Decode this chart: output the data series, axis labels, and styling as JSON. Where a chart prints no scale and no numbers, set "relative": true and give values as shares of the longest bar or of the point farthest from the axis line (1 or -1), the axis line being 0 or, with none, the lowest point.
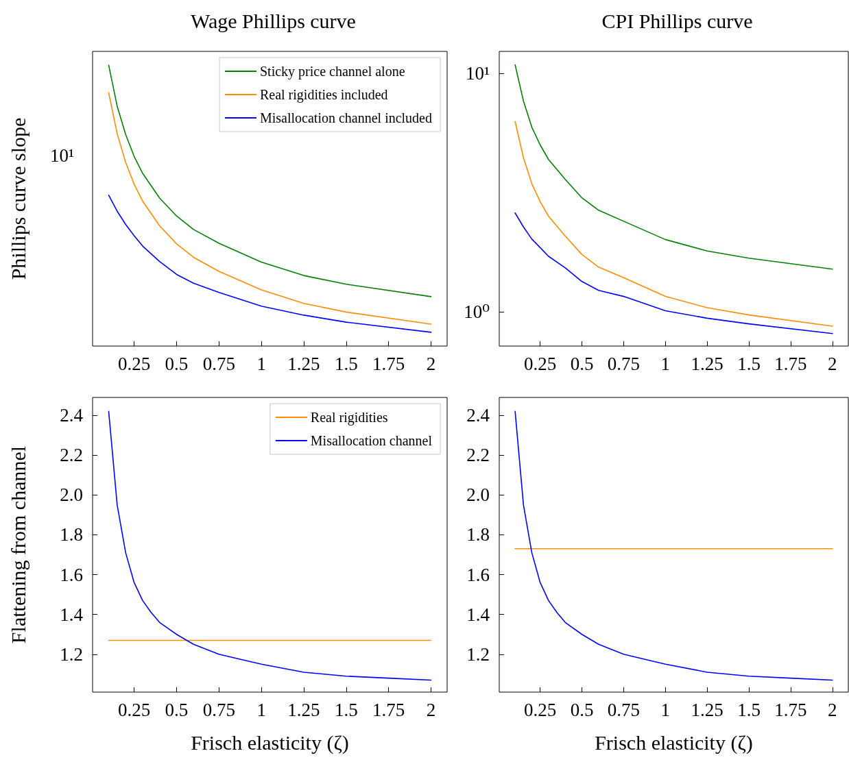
{
  "chart_data": [
    {
      "type": "line",
      "title": "Wage Phillips curve",
      "ylabel": "Phillips curve slope",
      "x": [
        0.1,
        0.15,
        0.2,
        0.25,
        0.3,
        0.4,
        0.5,
        0.6,
        0.75,
        1,
        1.25,
        1.5,
        2
      ],
      "xlim": [
        0.005,
        2.095
      ],
      "xticks": [
        0.25,
        0.5,
        0.75,
        1,
        1.25,
        1.5,
        1.75,
        2
      ],
      "relative": true,
      "annotations": [
        "10¹"
      ],
      "grid": false,
      "legend": "top right",
      "marker": "none",
      "line_style": "solid",
      "series": [
        {
          "name": "Sticky price channel alone",
          "color": "#008000",
          "values": [
            1,
            0.854,
            0.753,
            0.675,
            0.615,
            0.527,
            0.463,
            0.415,
            0.366,
            0.299,
            0.251,
            0.22,
            0.176
          ]
        },
        {
          "name": "Real rigidities included",
          "color": "#ff8c00",
          "values": [
            0.902,
            0.756,
            0.654,
            0.576,
            0.516,
            0.428,
            0.364,
            0.316,
            0.266,
            0.2,
            0.152,
            0.121,
            0.078
          ]
        },
        {
          "name": "Misallocation channel included",
          "color": "#0000ff",
          "values": [
            0.537,
            0.48,
            0.433,
            0.393,
            0.356,
            0.301,
            0.255,
            0.224,
            0.191,
            0.142,
            0.11,
            0.085,
            0.049
          ]
        }
      ]
    },
    {
      "type": "line",
      "title": "CPI Phillips curve",
      "log": "y",
      "x": [
        0.1,
        0.15,
        0.2,
        0.25,
        0.3,
        0.4,
        0.5,
        0.6,
        0.75,
        1,
        1.25,
        1.5,
        2
      ],
      "xlim": [
        0.005,
        2.095
      ],
      "xticks": [
        0.25,
        0.5,
        0.75,
        1,
        1.25,
        1.5,
        1.75,
        2
      ],
      "ylim": [
        0.718,
        12.4
      ],
      "yticks": [
        {
          "value": 1,
          "label": "10⁰"
        },
        {
          "value": 10,
          "label": "10¹"
        }
      ],
      "grid": false,
      "marker": "none",
      "line_style": "solid",
      "series": [
        {
          "color": "#008000",
          "values": [
            10.9,
            7.67,
            5.96,
            5.02,
            4.36,
            3.6,
            3.01,
            2.67,
            2.4,
            2.01,
            1.8,
            1.68,
            1.51
          ]
        },
        {
          "color": "#ff8c00",
          "values": [
            6.3,
            4.43,
            3.45,
            2.9,
            2.52,
            2.08,
            1.74,
            1.54,
            1.39,
            1.16,
            1.04,
            0.97,
            0.87
          ]
        },
        {
          "color": "#0000ff",
          "values": [
            2.6,
            2.27,
            2.02,
            1.86,
            1.71,
            1.53,
            1.34,
            1.23,
            1.16,
            1.01,
            0.94,
            0.89,
            0.81
          ]
        }
      ]
    },
    {
      "type": "line",
      "xlabel": "Frisch elasticity (ζ)",
      "ylabel": "Flattening from channel",
      "x": [
        0.1,
        0.15,
        0.2,
        0.25,
        0.3,
        0.35,
        0.4,
        0.5,
        0.6,
        0.75,
        0.9,
        1,
        1.25,
        1.5,
        1.75,
        2
      ],
      "xlim": [
        0.005,
        2.095
      ],
      "xticks": [
        0.25,
        0.5,
        0.75,
        1,
        1.25,
        1.5,
        1.75,
        2
      ],
      "ylim": [
        1.01,
        2.49
      ],
      "yticks": [
        1.2,
        1.4,
        1.6,
        1.8,
        {
          "value": 2,
          "label": "2.0"
        },
        2.2,
        2.4
      ],
      "grid": false,
      "legend": "top right",
      "marker": "none",
      "line_style": "solid",
      "series": [
        {
          "name": "Real rigidities",
          "color": "#ff8c00",
          "values": [
            1.27,
            1.27,
            1.27,
            1.27,
            1.27,
            1.27,
            1.27,
            1.27,
            1.27,
            1.27,
            1.27,
            1.27,
            1.27,
            1.27,
            1.27,
            1.27
          ]
        },
        {
          "name": "Misallocation channel",
          "color": "#0000ff",
          "values": [
            2.42,
            1.95,
            1.71,
            1.56,
            1.47,
            1.41,
            1.36,
            1.3,
            1.25,
            1.2,
            1.17,
            1.15,
            1.11,
            1.09,
            1.08,
            1.07
          ]
        }
      ]
    },
    {
      "type": "line",
      "xlabel": "Frisch elasticity (ζ)",
      "x": [
        0.1,
        0.15,
        0.2,
        0.25,
        0.3,
        0.35,
        0.4,
        0.5,
        0.6,
        0.75,
        0.9,
        1,
        1.25,
        1.5,
        1.75,
        2
      ],
      "xlim": [
        0.005,
        2.095
      ],
      "xticks": [
        0.25,
        0.5,
        0.75,
        1,
        1.25,
        1.5,
        1.75,
        2
      ],
      "ylim": [
        1.01,
        2.49
      ],
      "yticks": [
        1.2,
        1.4,
        1.6,
        1.8,
        {
          "value": 2,
          "label": "2.0"
        },
        2.2,
        2.4
      ],
      "grid": false,
      "marker": "none",
      "line_style": "solid",
      "series": [
        {
          "color": "#ff8c00",
          "values": [
            1.73,
            1.73,
            1.73,
            1.73,
            1.73,
            1.73,
            1.73,
            1.73,
            1.73,
            1.73,
            1.73,
            1.73,
            1.73,
            1.73,
            1.73,
            1.73
          ]
        },
        {
          "color": "#0000ff",
          "values": [
            2.42,
            1.95,
            1.71,
            1.56,
            1.47,
            1.41,
            1.36,
            1.3,
            1.25,
            1.2,
            1.17,
            1.15,
            1.11,
            1.09,
            1.08,
            1.07
          ]
        }
      ]
    }
  ]
}
